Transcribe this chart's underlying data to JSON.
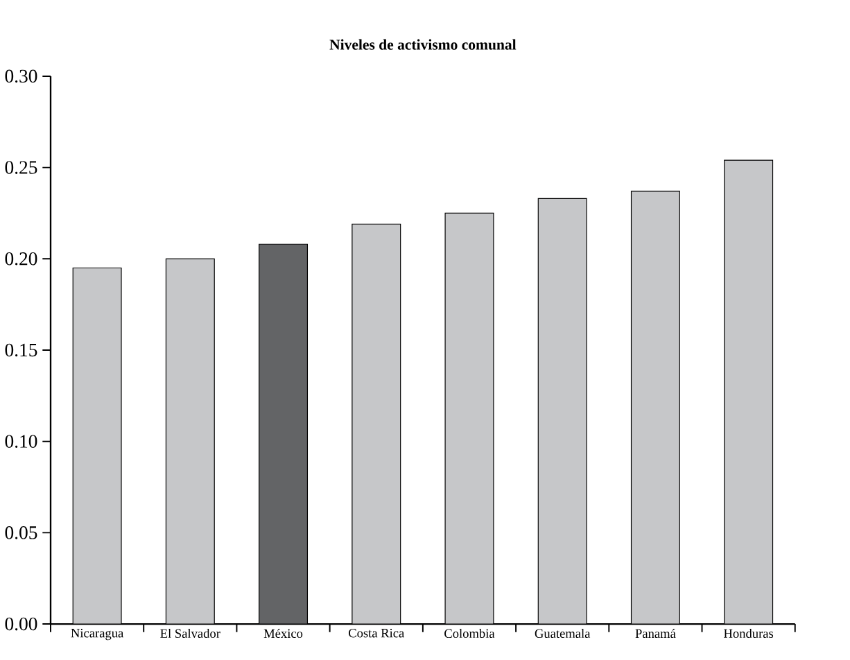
{
  "chart_data": {
    "type": "bar",
    "title": "Niveles de activismo comunal",
    "categories": [
      "Nicaragua",
      "El Salvador",
      "México",
      "Costa Rica",
      "Colombia",
      "Guatemala",
      "Panamá",
      "Honduras"
    ],
    "values": [
      0.195,
      0.2,
      0.208,
      0.219,
      0.225,
      0.233,
      0.237,
      0.254
    ],
    "colors": [
      "#c6c7c9",
      "#c6c7c9",
      "#636466",
      "#c6c7c9",
      "#c6c7c9",
      "#c6c7c9",
      "#c6c7c9",
      "#c6c7c9"
    ],
    "ylim": [
      0,
      0.3
    ],
    "yticks": [
      {
        "value": 0,
        "label": "0.00"
      },
      {
        "value": 0.05,
        "label": "0.05"
      },
      {
        "value": 0.1,
        "label": "0.10"
      },
      {
        "value": 0.15,
        "label": "0.15"
      },
      {
        "value": 0.2,
        "label": "0.20"
      },
      {
        "value": 0.25,
        "label": "0.25"
      },
      {
        "value": 0.3,
        "label": "0.30"
      }
    ],
    "grid": false
  }
}
